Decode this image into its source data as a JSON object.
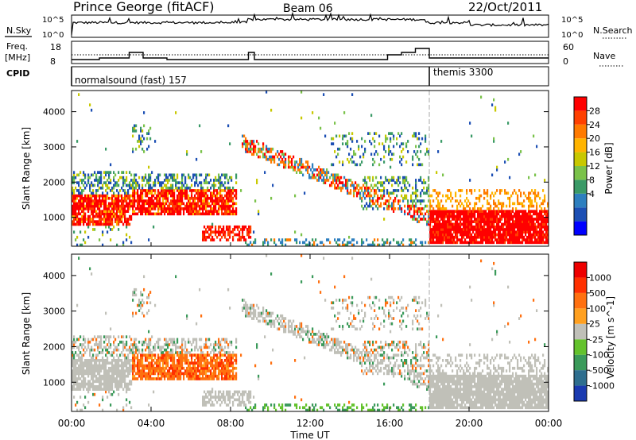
{
  "header": {
    "station": "Prince George (fitACF)",
    "beam": "Beam 06",
    "date": "22/Oct/2011"
  },
  "panels": {
    "nsky": {
      "label": "N.Sky",
      "left_ticks": [
        "10^5",
        "10^0"
      ],
      "right_ticks": [
        "10^5",
        "10^0"
      ],
      "right_label": "N.Search"
    },
    "freq": {
      "label_top": "Freq.",
      "label_units": "[MHz]",
      "left_ticks": [
        "18",
        "8"
      ],
      "right_ticks": [
        "60",
        "0"
      ],
      "right_label": "Nave"
    },
    "cpid": {
      "label": "CPID",
      "segments": [
        {
          "name": "normalsound (fast) 157",
          "start_hour": 0
        },
        {
          "name": "themis 3300",
          "start_hour": 18
        }
      ]
    }
  },
  "chart_data": [
    {
      "type": "heatmap",
      "title": "Power",
      "ylabel": "Slant Range [km]",
      "ylim": [
        180,
        4600
      ],
      "yticks": [
        "1000",
        "2000",
        "3000",
        "4000"
      ],
      "colorbar": {
        "label": "Power [dB]",
        "ticks": [
          "28",
          "24",
          "20",
          "16",
          "12",
          "8",
          "4"
        ],
        "colors": [
          "#0000ff",
          "#1c4fb4",
          "#2d7fbf",
          "#3a9a67",
          "#7ac24a",
          "#c8c800",
          "#ffb400",
          "#ff7a00",
          "#ff4000",
          "#ff0000"
        ]
      }
    },
    {
      "type": "heatmap",
      "title": "Velocity",
      "ylabel": "Slant Range [km]",
      "ylim": [
        180,
        4600
      ],
      "yticks": [
        "1000",
        "2000",
        "3000",
        "4000"
      ],
      "colorbar": {
        "label": "Velocity [m s^-1]",
        "ticks": [
          "1000",
          "500",
          "100",
          "25",
          "-25",
          "-100",
          "-500",
          "-1000"
        ],
        "colors": [
          "#1a3ab0",
          "#2e6e8e",
          "#3a9a5a",
          "#63c22c",
          "#c0c0b8",
          "#ffa020",
          "#ff7010",
          "#ff3000",
          "#ee0000"
        ]
      }
    }
  ],
  "xaxis": {
    "label": "Time UT",
    "ticks": [
      "00:00",
      "04:00",
      "08:00",
      "12:00",
      "16:00",
      "20:00",
      "00:00"
    ]
  }
}
